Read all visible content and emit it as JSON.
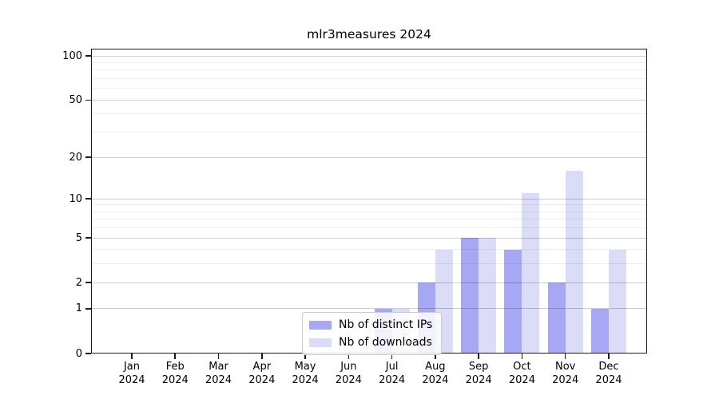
{
  "chart_data": {
    "type": "bar",
    "title": "mlr3measures 2024",
    "categories": [
      "Jan",
      "Feb",
      "Mar",
      "Apr",
      "May",
      "Jun",
      "Jul",
      "Aug",
      "Sep",
      "Oct",
      "Nov",
      "Dec"
    ],
    "x_tick_year": "2024",
    "series": [
      {
        "name": "Nb of distinct IPs",
        "color": "#a7a8f3",
        "values": [
          0,
          0,
          0,
          0,
          0,
          0,
          1,
          2,
          5,
          4,
          2,
          1
        ]
      },
      {
        "name": "Nb of downloads",
        "color": "#dbdcf8",
        "values": [
          0,
          0,
          0,
          0,
          0,
          0,
          1,
          4,
          5,
          11,
          16,
          4
        ]
      }
    ],
    "y_axis": {
      "scale": "log1p",
      "major_ticks": [
        0,
        1,
        2,
        5,
        10,
        20,
        50,
        100
      ],
      "minor_gridlines": [
        3,
        4,
        6,
        7,
        8,
        9,
        30,
        40,
        60,
        70,
        80,
        90
      ],
      "top_value": 110
    },
    "xlabel": "",
    "ylabel": "",
    "grid": "horizontal",
    "legend_position": "lower-center",
    "colors": {
      "major_grid": "rgba(0,0,0,0.20)",
      "minor_grid": "rgba(0,0,0,0.07)",
      "spine": "#1a1a1a",
      "text": "#000000"
    }
  }
}
